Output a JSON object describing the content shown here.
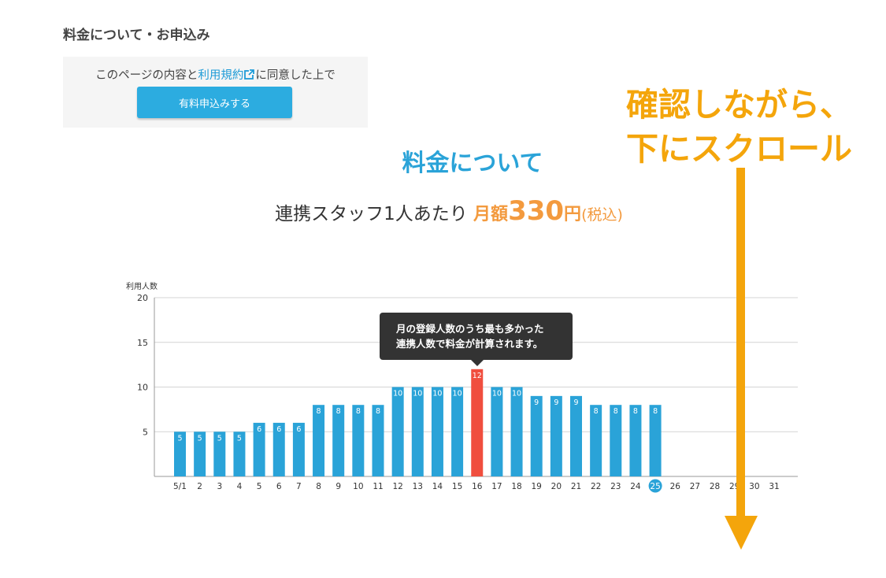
{
  "section": {
    "title": "料金について・お申込み"
  },
  "apply": {
    "agree_prefix": "このページの内容と",
    "terms_link": "利用規約",
    "agree_suffix": "に同意した上で",
    "button_label": "有料申込みする"
  },
  "pricing": {
    "heading": "料金について",
    "per_staff": "連携スタッフ1人あたり",
    "monthly_label": "月額",
    "amount": "330",
    "unit": "円",
    "tax_note": "(税込)"
  },
  "tooltip": {
    "line1": "月の登録人数のうち最も多かった",
    "line2": "連携人数で料金が計算されます。"
  },
  "annotation": {
    "line1": "確認しながら、",
    "line2": "下にスクロール"
  },
  "colors": {
    "accent": "#2aa3d8",
    "bar": "#2aa3d8",
    "highlight_bar": "#f04e3e",
    "price": "#f39a3e",
    "annotation": "#f4a50b"
  },
  "chart_data": {
    "type": "bar",
    "ylabel": "利用人数",
    "ylim": [
      0,
      20
    ],
    "yticks": [
      5,
      10,
      15,
      20
    ],
    "categories": [
      "5/1",
      "2",
      "3",
      "4",
      "5",
      "6",
      "7",
      "8",
      "9",
      "10",
      "11",
      "12",
      "13",
      "14",
      "15",
      "16",
      "17",
      "18",
      "19",
      "20",
      "21",
      "22",
      "23",
      "24",
      "25",
      "26",
      "27",
      "28",
      "29",
      "30",
      "31"
    ],
    "values": [
      5,
      5,
      5,
      5,
      6,
      6,
      6,
      8,
      8,
      8,
      8,
      10,
      10,
      10,
      10,
      12,
      10,
      10,
      9,
      9,
      9,
      8,
      8,
      8,
      8,
      null,
      null,
      null,
      null,
      null,
      null
    ],
    "highlight_index": 15,
    "current_index": 24,
    "grid": true
  }
}
